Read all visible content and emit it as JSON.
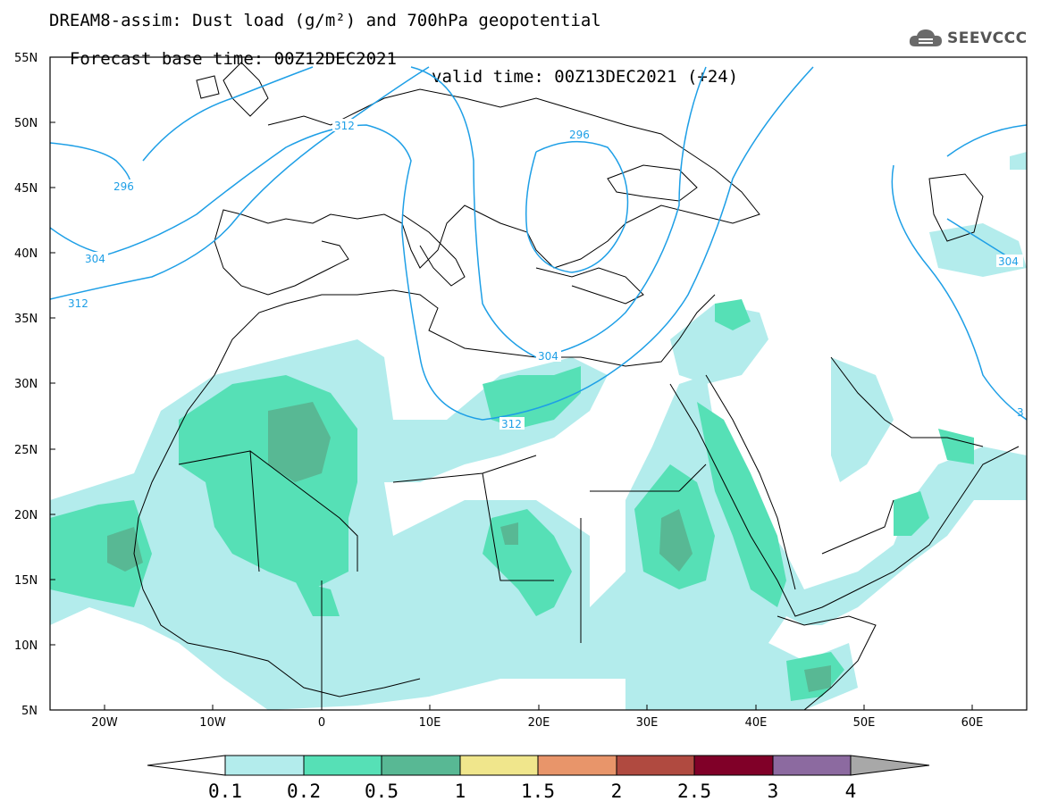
{
  "header": {
    "title_line1": "DREAM8-assim: Dust load (g/m²) and 700hPa geopotential",
    "base_time": "Forecast base time: 00Z12DEC2021",
    "valid_time": "valid time: 00Z13DEC2021 (+24)"
  },
  "logo": {
    "icon": "cloud-icon",
    "text": "SEEVCCC"
  },
  "map": {
    "lat_labels": [
      "55N",
      "50N",
      "45N",
      "40N",
      "35N",
      "30N",
      "25N",
      "20N",
      "15N",
      "10N",
      "5N"
    ],
    "lon_labels": [
      "20W",
      "10W",
      "0",
      "10E",
      "20E",
      "30E",
      "40E",
      "50E",
      "60E"
    ],
    "contour_labels": [
      "296",
      "304",
      "312",
      "296",
      "304",
      "312",
      "304",
      "3"
    ],
    "colors": {
      "contour": "#1e9fe6",
      "coast": "#000000"
    }
  },
  "colorbar": {
    "labels": [
      "0.1",
      "0.2",
      "0.5",
      "1",
      "1.5",
      "2",
      "2.5",
      "3",
      "4"
    ],
    "colors": [
      "#ffffff",
      "#b3ecec",
      "#56e0b6",
      "#58b894",
      "#f0e68c",
      "#e8956a",
      "#b04a40",
      "#800028",
      "#8c6aa0",
      "#a8a8a8"
    ]
  },
  "dust_colors": {
    "light": "#b3ecec",
    "medium": "#56e0b6",
    "dark": "#58b894"
  }
}
